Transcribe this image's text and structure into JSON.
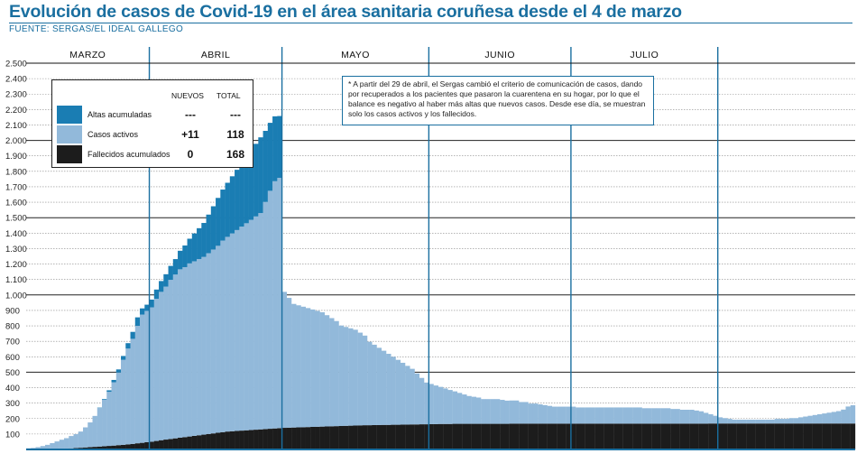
{
  "title": "Evolución de casos de Covid-19 en el área sanitaria coruñesa desde el 4 de marzo",
  "source": "FUENTE: SERGAS/EL IDEAL GALLEGO",
  "note": "* A partir del 29 de abril, el Sergas cambió el criterio de comunicación de casos, dando por recuperados a los pacientes que pasaron la cuarentena en su hogar, por lo que el balance es negativo al haber más altas que nuevos casos. Desde ese día, se muestran solo los casos activos y los fallecidos.",
  "legend": {
    "header_nuevos": "NUEVOS",
    "header_total": "TOTAL",
    "items": [
      {
        "label": "Altas acumuladas",
        "nuevos": "---",
        "total": "---",
        "color": "#1a7db3"
      },
      {
        "label": "Casos activos",
        "nuevos": "+11",
        "total": "118",
        "color": "#92b9da"
      },
      {
        "label": "Fallecidos acumulados",
        "nuevos": "0",
        "total": "168",
        "color": "#1c1c1c"
      }
    ]
  },
  "colors": {
    "altas": "#1a7db3",
    "activos": "#92b9da",
    "fallecidos": "#1c1c1c",
    "axis": "#1a6fa0"
  },
  "chart_data": {
    "type": "bar",
    "stacked": true,
    "title": "Evolución de casos de Covid-19 en el área sanitaria coruñesa desde el 4 de marzo",
    "ylim": [
      0,
      2500
    ],
    "yticks": [
      100,
      200,
      300,
      400,
      500,
      600,
      700,
      800,
      900,
      1000,
      1100,
      1200,
      1300,
      1400,
      1500,
      1600,
      1700,
      1800,
      1900,
      2000,
      2100,
      2200,
      2300,
      2400,
      2500
    ],
    "ytick_labels": [
      "100",
      "200",
      "300",
      "400",
      "500",
      "600",
      "700",
      "800",
      "900",
      "1.000",
      "1.100",
      "1.200",
      "1.300",
      "1.400",
      "1.500",
      "1.600",
      "1.700",
      "1.800",
      "1.900",
      "2.000",
      "2.100",
      "2.200",
      "2.300",
      "2.400",
      "2.500"
    ],
    "grid": true,
    "months": [
      "MARZO",
      "ABRIL",
      "MAYO",
      "JUNIO",
      "JULIO"
    ],
    "series_names": [
      "Fallecidos acumulados",
      "Casos activos",
      "Altas acumuladas"
    ],
    "march": {
      "start_day": 4,
      "activos": [
        8,
        10,
        15,
        22,
        30,
        40,
        50,
        60,
        68,
        80,
        90,
        105,
        130,
        160,
        200,
        250,
        300,
        350,
        410,
        470,
        550,
        620,
        680,
        760,
        830,
        850
      ],
      "altas": [
        0,
        0,
        0,
        0,
        0,
        0,
        0,
        0,
        0,
        0,
        0,
        0,
        0,
        0,
        0,
        2,
        5,
        10,
        15,
        20,
        25,
        35,
        45,
        55,
        40,
        40
      ],
      "fallecidos": [
        0,
        0,
        0,
        0,
        0,
        1,
        2,
        3,
        5,
        7,
        9,
        11,
        13,
        15,
        17,
        19,
        21,
        23,
        25,
        28,
        30,
        33,
        36,
        40,
        43,
        47
      ]
    },
    "april": {
      "activos": [
        870,
        920,
        960,
        990,
        1030,
        1060,
        1090,
        1100,
        1120,
        1130,
        1140,
        1150,
        1170,
        1190,
        1210,
        1240,
        1260,
        1280,
        1300,
        1320,
        1340,
        1360,
        1380,
        1400,
        1470,
        1540,
        1600,
        1620
      ],
      "altas": [
        50,
        60,
        70,
        80,
        90,
        100,
        120,
        140,
        160,
        180,
        200,
        220,
        250,
        280,
        310,
        330,
        350,
        370,
        390,
        410,
        430,
        450,
        470,
        490,
        460,
        440,
        420,
        400
      ],
      "fallecidos": [
        50,
        55,
        60,
        64,
        68,
        72,
        76,
        80,
        84,
        88,
        92,
        96,
        100,
        104,
        108,
        112,
        116,
        118,
        120,
        122,
        124,
        126,
        128,
        130,
        132,
        134,
        136,
        138
      ]
    },
    "after_april_28": {
      "activos": [
        880,
        840,
        800,
        790,
        780,
        770,
        760,
        750,
        740,
        720,
        700,
        680,
        650,
        640,
        630,
        620,
        600,
        580,
        540,
        520,
        500,
        480,
        460,
        440,
        420,
        400,
        380,
        360,
        330,
        300,
        270,
        260,
        250,
        240,
        230,
        220,
        210,
        200,
        190,
        180,
        175,
        170,
        160,
        160,
        160,
        160,
        155,
        150,
        150,
        150,
        140,
        140,
        130,
        130,
        125,
        120,
        115,
        110,
        110,
        110,
        110,
        110,
        105,
        105,
        105,
        105,
        105,
        105,
        105,
        105,
        105,
        105,
        105,
        105,
        105,
        105,
        100,
        100,
        100,
        100,
        100,
        100,
        95,
        95,
        90,
        90,
        90,
        85,
        80,
        70,
        60,
        50,
        40,
        35,
        30,
        25,
        25,
        25,
        25,
        25,
        25,
        25,
        25,
        25,
        30,
        30,
        30,
        35,
        35,
        40,
        45,
        50,
        55,
        60,
        65,
        70,
        75,
        80,
        90,
        110,
        118
      ],
      "fallecidos": [
        140,
        141,
        142,
        143,
        144,
        145,
        146,
        147,
        148,
        149,
        150,
        151,
        152,
        153,
        154,
        155,
        156,
        157,
        157,
        158,
        158,
        159,
        159,
        160,
        160,
        161,
        161,
        162,
        162,
        163,
        163,
        164,
        164,
        165,
        165,
        165,
        166,
        166,
        166,
        166,
        166,
        166,
        166,
        166,
        166,
        166,
        166,
        166,
        167,
        167,
        167,
        167,
        167,
        167,
        167,
        167,
        167,
        167,
        167,
        167,
        167,
        167,
        167,
        167,
        167,
        167,
        167,
        167,
        167,
        167,
        167,
        167,
        167,
        167,
        167,
        167,
        167,
        167,
        167,
        167,
        167,
        167,
        167,
        167,
        167,
        167,
        167,
        167,
        167,
        167,
        168,
        168,
        168,
        168,
        168,
        168,
        168,
        168,
        168,
        168,
        168,
        168,
        168,
        168,
        168,
        168,
        168,
        168,
        168,
        168,
        168,
        168,
        168,
        168,
        168,
        168,
        168,
        168,
        168,
        168,
        168
      ]
    }
  }
}
